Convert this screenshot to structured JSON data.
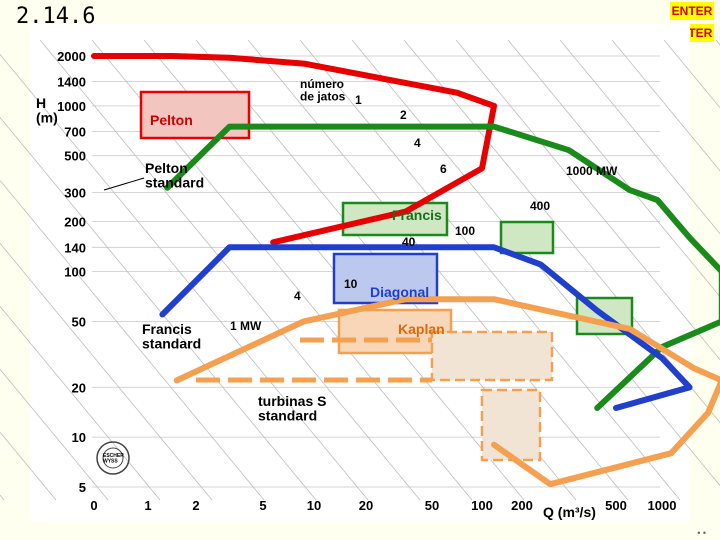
{
  "slide": {
    "number": "2.14.6",
    "enter_labels": [
      "ENTER",
      "ENTER"
    ],
    "corner_mark": "• •"
  },
  "chart_data": {
    "type": "line",
    "title": "",
    "ylabel": "H\n(m)",
    "xlabel": "Q (m³/s)",
    "yscale": "log",
    "xscale": "categorical-log",
    "y_ticks": [
      2000,
      1400,
      1000,
      700,
      500,
      300,
      200,
      140,
      100,
      50,
      20,
      10,
      5
    ],
    "x_ticks": [
      "0",
      "1",
      "2",
      "5",
      "10",
      "20",
      "50",
      "100",
      "200",
      "500",
      "1000"
    ],
    "grid": true,
    "colors": {
      "pelton": "#e60000",
      "francis": "#1a8a1a",
      "diagonal": "#1f3fcc",
      "kaplan": "#f5a050",
      "background": "#ffffff"
    },
    "labels": {
      "jets_header": "número\nde jatos",
      "jets": [
        "1",
        "2",
        "4",
        "6"
      ],
      "power": [
        "1000 MW",
        "400",
        "100",
        "40",
        "10",
        "4",
        "1 MW"
      ],
      "pelton": "Pelton",
      "francis": "Francis",
      "diagonal": "Diagonal",
      "kaplan": "Kaplan",
      "pelton_standard": "Pelton\nstandard",
      "francis_standard": "Francis\nstandard",
      "s_standard": "turbinas S\nstandard",
      "logo": "ESCHER\nWYSS"
    },
    "series": [
      {
        "key": "pelton",
        "color": "#e60000",
        "points": [
          [
            0,
            2000
          ],
          [
            1.5,
            2000
          ],
          [
            2.5,
            1950
          ],
          [
            3.8,
            1800
          ],
          [
            6.5,
            1200
          ],
          [
            7.3,
            1000
          ],
          [
            7.0,
            420
          ],
          [
            5.6,
            230
          ],
          [
            3.2,
            150
          ]
        ]
      },
      {
        "key": "francis",
        "color": "#1a8a1a",
        "points": [
          [
            1.4,
            320
          ],
          [
            2.5,
            750
          ],
          [
            4.5,
            750
          ],
          [
            6.3,
            750
          ],
          [
            7.3,
            750
          ],
          [
            8.5,
            540
          ],
          [
            9.3,
            310
          ],
          [
            9.9,
            270
          ],
          [
            10.6,
            160
          ],
          [
            11.3,
            100
          ],
          [
            11.3,
            50
          ],
          [
            10.0,
            35
          ],
          [
            8.8,
            15
          ]
        ]
      },
      {
        "key": "diagonal",
        "color": "#1f3fcc",
        "points": [
          [
            1.3,
            55
          ],
          [
            2.5,
            140
          ],
          [
            3.8,
            140
          ],
          [
            6.3,
            140
          ],
          [
            7.3,
            140
          ],
          [
            8.2,
            110
          ],
          [
            8.8,
            58
          ],
          [
            10.0,
            30
          ],
          [
            10.6,
            20
          ],
          [
            9.0,
            15
          ]
        ]
      },
      {
        "key": "kaplan",
        "color": "#f5a050",
        "points": [
          [
            1.6,
            22
          ],
          [
            3.8,
            50
          ],
          [
            5.6,
            68
          ],
          [
            7.3,
            68
          ],
          [
            9.3,
            45
          ],
          [
            10.7,
            26
          ],
          [
            11.3,
            22
          ],
          [
            11.0,
            14
          ],
          [
            10.2,
            8
          ],
          [
            8.3,
            5.2
          ],
          [
            7.3,
            9
          ]
        ]
      }
    ]
  }
}
